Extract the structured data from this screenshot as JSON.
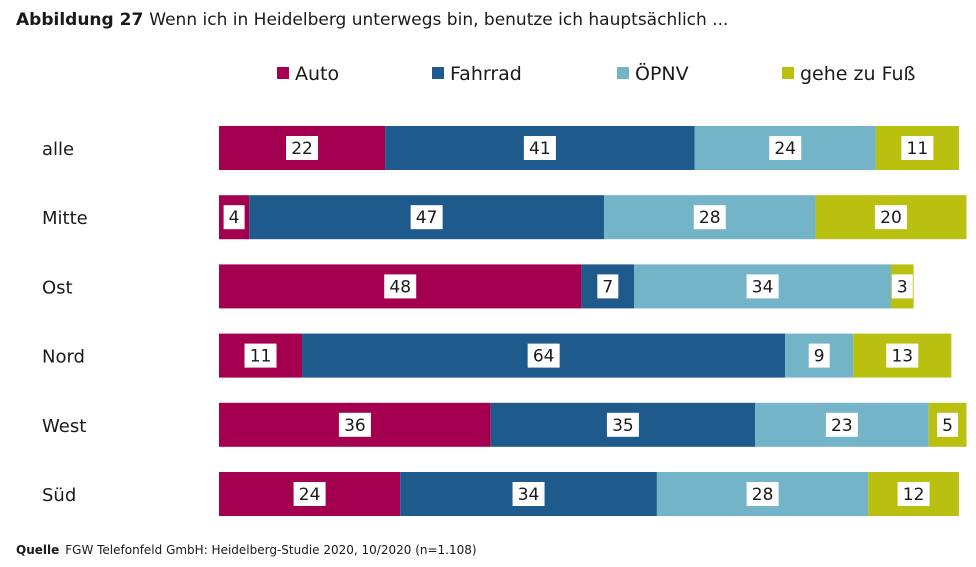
{
  "figure": {
    "label": "Abbildung 27",
    "title": "Wenn ich in Heidelberg unterwegs bin, benutze ich hauptsächlich ..."
  },
  "source": {
    "label": "Quelle",
    "text": "FGW Telefonfeld GmbH: Heidelberg-Studie 2020, 10/2020 (n=1.108)"
  },
  "chart_data": {
    "type": "bar",
    "orientation": "horizontal",
    "stacked": true,
    "title": "Wenn ich in Heidelberg unterwegs bin, benutze ich hauptsächlich ...",
    "xlabel": "",
    "ylabel": "",
    "unit": "%",
    "legend_position": "top",
    "categories": [
      "alle",
      "Mitte",
      "Ost",
      "Nord",
      "West",
      "Süd"
    ],
    "series": [
      {
        "name": "Auto",
        "color": "#a50050",
        "values": [
          22,
          4,
          48,
          11,
          36,
          24
        ]
      },
      {
        "name": "Fahrrad",
        "color": "#1e5a8c",
        "values": [
          41,
          47,
          7,
          64,
          35,
          34
        ]
      },
      {
        "name": "ÖPNV",
        "color": "#73b4c8",
        "values": [
          24,
          28,
          34,
          9,
          23,
          28
        ]
      },
      {
        "name": "gehe zu Fuß",
        "color": "#b9c00f",
        "values": [
          11,
          20,
          3,
          13,
          5,
          12
        ]
      }
    ],
    "xlim": [
      0,
      100
    ]
  }
}
